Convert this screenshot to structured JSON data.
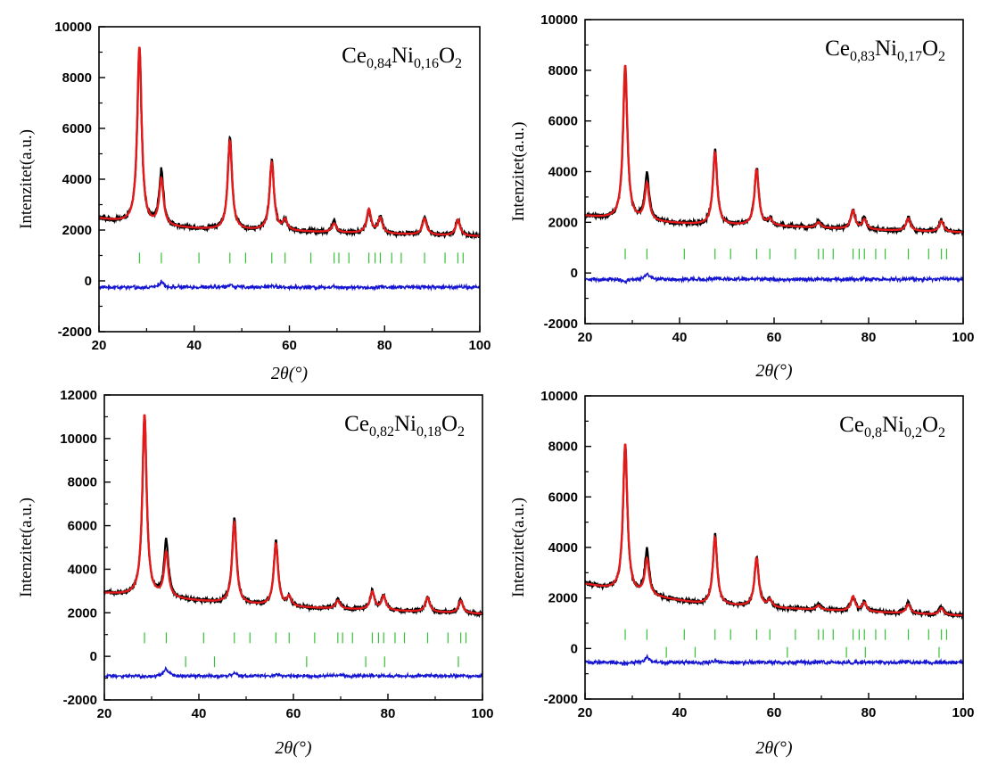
{
  "colors": {
    "observed": "#000000",
    "calculated": "#e41a1a",
    "difference": "#1414d2",
    "bragg": "#36c236"
  },
  "chart_data": [
    {
      "type": "line",
      "label_main": [
        "Ce",
        "0,84",
        "Ni",
        "0,16",
        "O",
        "2"
      ],
      "xlabel": "2θ(°)",
      "ylabel": "Intenzitet(a.u.)",
      "xlim": [
        20,
        100
      ],
      "ylim": [
        -2000,
        10000
      ],
      "xticks": [
        20,
        40,
        60,
        80,
        100
      ],
      "yticks": [
        -2000,
        0,
        2000,
        4000,
        6000,
        8000,
        10000
      ],
      "baseline": [
        [
          20,
          2450
        ],
        [
          30,
          2150
        ],
        [
          45,
          2000
        ],
        [
          60,
          1950
        ],
        [
          80,
          1850
        ],
        [
          100,
          1750
        ]
      ],
      "peaks": [
        {
          "x": 28.5,
          "obs": 9100,
          "calc": 9200
        },
        {
          "x": 33.1,
          "obs": 4300,
          "calc": 3950
        },
        {
          "x": 47.5,
          "obs": 5650,
          "calc": 5500
        },
        {
          "x": 56.3,
          "obs": 4750,
          "calc": 4650
        },
        {
          "x": 59.1,
          "obs": 2350,
          "calc": 2350
        },
        {
          "x": 69.4,
          "obs": 2300,
          "calc": 2250
        },
        {
          "x": 76.7,
          "obs": 2750,
          "calc": 2800
        },
        {
          "x": 79.1,
          "obs": 2500,
          "calc": 2450
        },
        {
          "x": 88.4,
          "obs": 2500,
          "calc": 2450
        },
        {
          "x": 95.4,
          "obs": 2450,
          "calc": 2400
        }
      ],
      "difference_level": -250,
      "bragg_row1_y": 900,
      "bragg_row1": [
        28.5,
        33.1,
        41.0,
        47.5,
        50.8,
        56.3,
        59.1,
        64.5,
        69.4,
        70.4,
        72.5,
        76.7,
        78.0,
        79.1,
        81.5,
        83.5,
        88.4,
        92.7,
        95.4,
        96.5
      ],
      "bragg_row2_y": null,
      "bragg_row2": []
    },
    {
      "type": "line",
      "label_main": [
        "Ce",
        "0,83",
        "Ni",
        "0,17",
        "O",
        "2"
      ],
      "xlabel": "2θ(°)",
      "ylabel": "Intenzitet(a.u.)",
      "xlim": [
        20,
        100
      ],
      "ylim": [
        -2000,
        10000
      ],
      "xticks": [
        20,
        40,
        60,
        80,
        100
      ],
      "yticks": [
        -2000,
        0,
        2000,
        4000,
        6000,
        8000,
        10000
      ],
      "baseline": [
        [
          20,
          2250
        ],
        [
          30,
          2050
        ],
        [
          45,
          1900
        ],
        [
          60,
          1850
        ],
        [
          80,
          1700
        ],
        [
          100,
          1600
        ]
      ],
      "peaks": [
        {
          "x": 28.5,
          "obs": 8050,
          "calc": 8200
        },
        {
          "x": 33.1,
          "obs": 3850,
          "calc": 3500
        },
        {
          "x": 47.5,
          "obs": 4850,
          "calc": 4750
        },
        {
          "x": 56.3,
          "obs": 4150,
          "calc": 4050
        },
        {
          "x": 59.1,
          "obs": 2100,
          "calc": 2100
        },
        {
          "x": 69.4,
          "obs": 2050,
          "calc": 2000
        },
        {
          "x": 76.7,
          "obs": 2450,
          "calc": 2450
        },
        {
          "x": 79.1,
          "obs": 2150,
          "calc": 2100
        },
        {
          "x": 88.4,
          "obs": 2200,
          "calc": 2150
        },
        {
          "x": 95.4,
          "obs": 2100,
          "calc": 2050
        }
      ],
      "difference_level": -250,
      "bragg_row1_y": 750,
      "bragg_row1": [
        28.5,
        33.1,
        41.0,
        47.5,
        50.8,
        56.3,
        59.1,
        64.5,
        69.4,
        70.4,
        72.5,
        76.7,
        78.0,
        79.1,
        81.5,
        83.5,
        88.4,
        92.7,
        95.4,
        96.5
      ],
      "bragg_row2_y": null,
      "bragg_row2": []
    },
    {
      "type": "line",
      "label_main": [
        "Ce",
        "0,82",
        "Ni",
        "0,18",
        "O",
        "2"
      ],
      "xlabel": "2θ(°)",
      "ylabel": "Intenzitet(a.u.)",
      "xlim": [
        20,
        100
      ],
      "ylim": [
        -2000,
        12000
      ],
      "xticks": [
        20,
        40,
        60,
        80,
        100
      ],
      "yticks": [
        -2000,
        0,
        2000,
        4000,
        6000,
        8000,
        10000,
        12000
      ],
      "baseline": [
        [
          20,
          2900
        ],
        [
          30,
          2700
        ],
        [
          45,
          2450
        ],
        [
          60,
          2250
        ],
        [
          80,
          2100
        ],
        [
          100,
          1950
        ]
      ],
      "peaks": [
        {
          "x": 28.5,
          "obs": 11000,
          "calc": 11100
        },
        {
          "x": 33.1,
          "obs": 5250,
          "calc": 4700
        },
        {
          "x": 47.5,
          "obs": 6350,
          "calc": 6150
        },
        {
          "x": 56.3,
          "obs": 5250,
          "calc": 5150
        },
        {
          "x": 59.1,
          "obs": 2700,
          "calc": 2700
        },
        {
          "x": 69.4,
          "obs": 2600,
          "calc": 2550
        },
        {
          "x": 76.7,
          "obs": 3000,
          "calc": 2950
        },
        {
          "x": 79.1,
          "obs": 2800,
          "calc": 2750
        },
        {
          "x": 88.4,
          "obs": 2750,
          "calc": 2700
        },
        {
          "x": 95.4,
          "obs": 2600,
          "calc": 2550
        }
      ],
      "difference_level": -900,
      "bragg_row1_y": 850,
      "bragg_row1": [
        28.5,
        33.1,
        41.0,
        47.5,
        50.8,
        56.3,
        59.1,
        64.5,
        69.4,
        70.4,
        72.5,
        76.7,
        78.0,
        79.1,
        81.5,
        83.5,
        88.4,
        92.7,
        95.4,
        96.5
      ],
      "bragg_row2_y": -250,
      "bragg_row2": [
        37.2,
        43.3,
        62.8,
        75.3,
        79.3,
        94.9
      ]
    },
    {
      "type": "line",
      "label_main": [
        "Ce",
        "0,8",
        "Ni",
        "0,2",
        "O",
        "2"
      ],
      "xlabel": "2θ(°)",
      "ylabel": "Intenzitet(a.u.)",
      "xlim": [
        20,
        100
      ],
      "ylim": [
        -2000,
        10000
      ],
      "xticks": [
        20,
        40,
        60,
        80,
        100
      ],
      "yticks": [
        -2000,
        0,
        2000,
        4000,
        6000,
        8000,
        10000
      ],
      "baseline": [
        [
          20,
          2550
        ],
        [
          30,
          2150
        ],
        [
          45,
          1750
        ],
        [
          60,
          1600
        ],
        [
          80,
          1450
        ],
        [
          100,
          1300
        ]
      ],
      "peaks": [
        {
          "x": 28.5,
          "obs": 8000,
          "calc": 8100
        },
        {
          "x": 33.1,
          "obs": 3850,
          "calc": 3500
        },
        {
          "x": 47.5,
          "obs": 4500,
          "calc": 4400
        },
        {
          "x": 56.3,
          "obs": 3600,
          "calc": 3550
        },
        {
          "x": 59.1,
          "obs": 1900,
          "calc": 1900
        },
        {
          "x": 69.4,
          "obs": 1750,
          "calc": 1700
        },
        {
          "x": 76.7,
          "obs": 2050,
          "calc": 2050
        },
        {
          "x": 79.1,
          "obs": 1850,
          "calc": 1800
        },
        {
          "x": 88.4,
          "obs": 1800,
          "calc": 1750
        },
        {
          "x": 95.4,
          "obs": 1650,
          "calc": 1600
        }
      ],
      "difference_level": -550,
      "bragg_row1_y": 550,
      "bragg_row1": [
        28.5,
        33.1,
        41.0,
        47.5,
        50.8,
        56.3,
        59.1,
        64.5,
        69.4,
        70.4,
        72.5,
        76.7,
        78.0,
        79.1,
        81.5,
        83.5,
        88.4,
        92.7,
        95.4,
        96.5
      ],
      "bragg_row2_y": -150,
      "bragg_row2": [
        37.2,
        43.3,
        62.8,
        75.3,
        79.3,
        94.9
      ]
    }
  ]
}
